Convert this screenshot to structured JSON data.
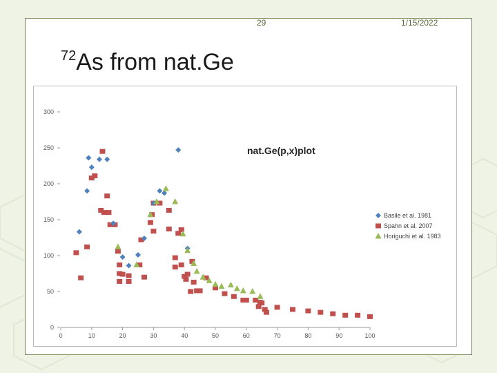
{
  "slide": {
    "number": "29",
    "date": "1/15/2022",
    "title_superscript": "72",
    "title_text": "As from nat.Ge"
  },
  "chart_data": {
    "type": "scatter",
    "title": "nat.Ge(p,x)plot",
    "xlabel": "",
    "ylabel": "",
    "xlim": [
      0,
      100
    ],
    "ylim": [
      0,
      300
    ],
    "x_ticks": [
      "0",
      "10",
      "20",
      "30",
      "40",
      "50",
      "60",
      "70",
      "80",
      "90",
      "100"
    ],
    "y_ticks": [
      "0",
      "50",
      "100",
      "150",
      "200",
      "250",
      "300"
    ],
    "grid": false,
    "legend_position": "right",
    "series": [
      {
        "name": "Basile et al. 1981",
        "marker": "diamond",
        "color": "#4f81bd",
        "points": [
          [
            6,
            133
          ],
          [
            8.5,
            190
          ],
          [
            9,
            236
          ],
          [
            10,
            223
          ],
          [
            12.5,
            234
          ],
          [
            15,
            234
          ],
          [
            17,
            145
          ],
          [
            20,
            98
          ],
          [
            22,
            86
          ],
          [
            25,
            101
          ],
          [
            27,
            124
          ],
          [
            30,
            173
          ],
          [
            32,
            190
          ],
          [
            33.5,
            187
          ],
          [
            38,
            247
          ],
          [
            41,
            110
          ]
        ]
      },
      {
        "name": "Spahn et al. 2007",
        "marker": "square",
        "color": "#c0504d",
        "points": [
          [
            5,
            104
          ],
          [
            6.5,
            69
          ],
          [
            8.5,
            112
          ],
          [
            10,
            208
          ],
          [
            11,
            211
          ],
          [
            13,
            163
          ],
          [
            13.5,
            245
          ],
          [
            14,
            160
          ],
          [
            15,
            183
          ],
          [
            15.5,
            160
          ],
          [
            16,
            143
          ],
          [
            17.5,
            143
          ],
          [
            18.5,
            106
          ],
          [
            19,
            87
          ],
          [
            19,
            75
          ],
          [
            19,
            64
          ],
          [
            20,
            74
          ],
          [
            22,
            64
          ],
          [
            22,
            72
          ],
          [
            25.5,
            87
          ],
          [
            26,
            122
          ],
          [
            27,
            70
          ],
          [
            29,
            146
          ],
          [
            29.5,
            157
          ],
          [
            30,
            134
          ],
          [
            30,
            173
          ],
          [
            32,
            173
          ],
          [
            35,
            163
          ],
          [
            35,
            137
          ],
          [
            37,
            97
          ],
          [
            37,
            84
          ],
          [
            38,
            131
          ],
          [
            39,
            87
          ],
          [
            39,
            136
          ],
          [
            40,
            71
          ],
          [
            40.5,
            67
          ],
          [
            41,
            74
          ],
          [
            42,
            50
          ],
          [
            42.5,
            92
          ],
          [
            43,
            63
          ],
          [
            44,
            51
          ],
          [
            45,
            51
          ],
          [
            47,
            69
          ],
          [
            50,
            55
          ],
          [
            53,
            47
          ],
          [
            56,
            43
          ],
          [
            59,
            38
          ],
          [
            60,
            38
          ],
          [
            63,
            38
          ],
          [
            64,
            29
          ],
          [
            64.5,
            35
          ],
          [
            65,
            34
          ],
          [
            66,
            25
          ],
          [
            66.5,
            21
          ],
          [
            70,
            28
          ],
          [
            75,
            25
          ],
          [
            80,
            23
          ],
          [
            84,
            21
          ],
          [
            88,
            19
          ],
          [
            92,
            17
          ],
          [
            96,
            17
          ],
          [
            100,
            15
          ]
        ]
      },
      {
        "name": "Horiguchi et al. 1983",
        "marker": "triangle",
        "color": "#9bbb59",
        "points": [
          [
            18.5,
            112
          ],
          [
            24.5,
            87
          ],
          [
            29,
            157
          ],
          [
            31,
            175
          ],
          [
            34,
            193
          ],
          [
            37,
            175
          ],
          [
            39.5,
            130
          ],
          [
            41,
            107
          ],
          [
            43,
            89
          ],
          [
            44,
            78
          ],
          [
            46,
            70
          ],
          [
            48,
            65
          ],
          [
            50,
            60
          ],
          [
            52,
            57
          ],
          [
            55,
            59
          ],
          [
            57,
            54
          ],
          [
            59,
            51
          ],
          [
            62,
            50
          ],
          [
            64.5,
            43
          ]
        ]
      }
    ]
  }
}
